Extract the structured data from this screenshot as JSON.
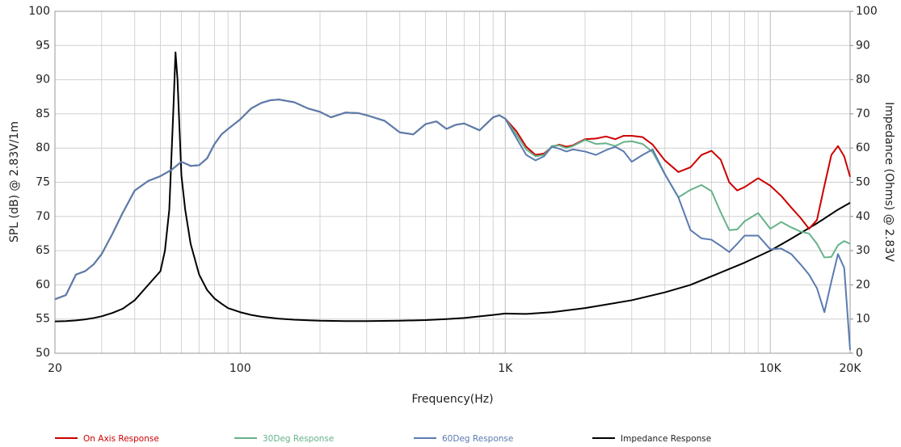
{
  "chart_data": {
    "type": "line",
    "xlabel": "Frequency(Hz)",
    "ylabel": "SPL (dB) @ 2.83V/1m",
    "y2label": "Impedance (Ohms) @ 2.83V",
    "xscale": "log",
    "xlim": [
      20,
      20000
    ],
    "xticks": [
      20,
      100,
      {
        "value": 1000,
        "label": "1K"
      },
      {
        "value": 10000,
        "label": "10K"
      },
      {
        "value": 20000,
        "label": "20K"
      }
    ],
    "x_minor_ticks": [
      30,
      40,
      50,
      60,
      70,
      80,
      90,
      200,
      300,
      400,
      500,
      600,
      700,
      800,
      900,
      2000,
      3000,
      4000,
      5000,
      6000,
      7000,
      8000,
      9000
    ],
    "ylim": [
      50,
      100
    ],
    "yticks": [
      50,
      55,
      60,
      65,
      70,
      75,
      80,
      85,
      90,
      95,
      100
    ],
    "y2lim": [
      0,
      100
    ],
    "y2ticks": [
      0,
      10,
      20,
      30,
      40,
      50,
      60,
      70,
      80,
      90,
      100
    ],
    "grid": true,
    "legend": "bottom",
    "series": [
      {
        "name": "On Axis Response",
        "color": "#cc0000",
        "x": [
          20,
          22,
          24,
          26,
          28,
          30,
          33,
          36,
          40,
          45,
          50,
          55,
          60,
          65,
          70,
          75,
          80,
          85,
          90,
          100,
          110,
          120,
          130,
          140,
          150,
          160,
          180,
          200,
          220,
          250,
          280,
          300,
          350,
          400,
          450,
          500,
          550,
          600,
          650,
          700,
          800,
          900,
          950,
          1000,
          1100,
          1200,
          1300,
          1400,
          1500,
          1600,
          1700,
          1800,
          2000,
          2200,
          2400,
          2600,
          2800,
          3000,
          3300,
          3600,
          4000,
          4500,
          5000,
          5500,
          6000,
          6500,
          7000,
          7500,
          8000,
          9000,
          10000,
          11000,
          12000,
          13000,
          14000,
          15000,
          16000,
          17000,
          18000,
          19000,
          20000
        ],
        "values": [
          57.9,
          58.5,
          61.5,
          62.0,
          63.0,
          64.5,
          67.5,
          70.5,
          73.8,
          75.2,
          75.9,
          76.8,
          78.0,
          77.4,
          77.5,
          78.5,
          80.6,
          82.0,
          82.8,
          84.2,
          85.8,
          86.6,
          87.0,
          87.1,
          86.9,
          86.7,
          85.8,
          85.3,
          84.5,
          85.2,
          85.1,
          84.8,
          84.0,
          82.3,
          82.0,
          83.5,
          83.9,
          82.8,
          83.4,
          83.6,
          82.6,
          84.5,
          84.8,
          84.3,
          82.5,
          80.2,
          79.0,
          79.2,
          80.2,
          80.5,
          80.2,
          80.4,
          81.3,
          81.4,
          81.7,
          81.3,
          81.8,
          81.8,
          81.6,
          80.5,
          78.2,
          76.5,
          77.2,
          79.0,
          79.6,
          78.3,
          75.0,
          73.8,
          74.3,
          75.6,
          74.5,
          73.0,
          71.3,
          69.8,
          68.2,
          69.5,
          74.5,
          79.0,
          80.3,
          78.8,
          75.8
        ]
      },
      {
        "name": "30Deg Response",
        "color": "#66b28a",
        "x": [
          20,
          22,
          24,
          26,
          28,
          30,
          33,
          36,
          40,
          45,
          50,
          55,
          60,
          65,
          70,
          75,
          80,
          85,
          90,
          100,
          110,
          120,
          130,
          140,
          150,
          160,
          180,
          200,
          220,
          250,
          280,
          300,
          350,
          400,
          450,
          500,
          550,
          600,
          650,
          700,
          800,
          900,
          950,
          1000,
          1100,
          1200,
          1300,
          1400,
          1500,
          1600,
          1700,
          1800,
          2000,
          2200,
          2400,
          2600,
          2800,
          3000,
          3300,
          3600,
          4000,
          4500,
          5000,
          5500,
          6000,
          6500,
          7000,
          7500,
          8000,
          9000,
          10000,
          11000,
          12000,
          13000,
          14000,
          15000,
          16000,
          17000,
          18000,
          19000,
          20000
        ],
        "values": [
          57.9,
          58.5,
          61.5,
          62.0,
          63.0,
          64.5,
          67.5,
          70.5,
          73.8,
          75.2,
          75.9,
          76.8,
          78.0,
          77.4,
          77.5,
          78.5,
          80.6,
          82.0,
          82.8,
          84.2,
          85.8,
          86.6,
          87.0,
          87.1,
          86.9,
          86.7,
          85.8,
          85.3,
          84.5,
          85.2,
          85.1,
          84.8,
          84.0,
          82.3,
          82.0,
          83.5,
          83.9,
          82.8,
          83.4,
          83.6,
          82.6,
          84.5,
          84.8,
          84.3,
          82.0,
          79.8,
          78.8,
          79.0,
          80.3,
          80.4,
          80.0,
          80.3,
          81.2,
          80.6,
          80.7,
          80.3,
          80.9,
          81.0,
          80.6,
          79.4,
          76.2,
          72.8,
          73.9,
          74.6,
          73.7,
          70.6,
          68.0,
          68.1,
          69.3,
          70.5,
          68.2,
          69.2,
          68.4,
          67.8,
          67.5,
          66.0,
          64.0,
          64.1,
          65.8,
          66.4,
          66.0
        ]
      },
      {
        "name": "60Deg Response",
        "color": "#5b7bb0",
        "x": [
          20,
          22,
          24,
          26,
          28,
          30,
          33,
          36,
          40,
          45,
          50,
          55,
          60,
          65,
          70,
          75,
          80,
          85,
          90,
          100,
          110,
          120,
          130,
          140,
          150,
          160,
          180,
          200,
          220,
          250,
          280,
          300,
          350,
          400,
          450,
          500,
          550,
          600,
          650,
          700,
          800,
          900,
          950,
          1000,
          1100,
          1200,
          1300,
          1400,
          1500,
          1600,
          1700,
          1800,
          2000,
          2200,
          2400,
          2600,
          2800,
          3000,
          3300,
          3600,
          4000,
          4500,
          5000,
          5500,
          6000,
          6500,
          7000,
          7500,
          8000,
          9000,
          10000,
          11000,
          12000,
          13000,
          14000,
          15000,
          16000,
          17000,
          18000,
          19000,
          20000
        ],
        "values": [
          57.9,
          58.5,
          61.5,
          62.0,
          63.0,
          64.5,
          67.5,
          70.5,
          73.8,
          75.2,
          75.9,
          76.8,
          78.0,
          77.4,
          77.5,
          78.5,
          80.6,
          82.0,
          82.8,
          84.2,
          85.8,
          86.6,
          87.0,
          87.1,
          86.9,
          86.7,
          85.8,
          85.3,
          84.5,
          85.2,
          85.1,
          84.8,
          84.0,
          82.3,
          82.0,
          83.5,
          83.9,
          82.8,
          83.4,
          83.6,
          82.6,
          84.5,
          84.8,
          84.3,
          81.5,
          79.0,
          78.2,
          78.8,
          80.2,
          79.9,
          79.5,
          79.8,
          79.5,
          79.0,
          79.7,
          80.2,
          79.5,
          78.0,
          79.0,
          79.8,
          76.2,
          72.8,
          68.0,
          66.8,
          66.6,
          65.7,
          64.8,
          66.0,
          67.2,
          67.2,
          65.2,
          65.3,
          64.5,
          63.0,
          61.5,
          59.5,
          56.0,
          60.5,
          64.5,
          62.5,
          50.5
        ]
      },
      {
        "name": "Impedance Response",
        "color": "#000000",
        "axis": "y2",
        "x": [
          20,
          22,
          24,
          26,
          28,
          30,
          33,
          36,
          40,
          45,
          50,
          52,
          54,
          56,
          57,
          58,
          60,
          62,
          65,
          70,
          75,
          80,
          85,
          90,
          100,
          110,
          120,
          140,
          160,
          200,
          250,
          300,
          400,
          500,
          600,
          700,
          800,
          900,
          1000,
          1200,
          1500,
          2000,
          3000,
          4000,
          5000,
          6000,
          8000,
          10000,
          12000,
          15000,
          18000,
          20000
        ],
        "values": [
          9.3,
          9.4,
          9.6,
          9.9,
          10.3,
          10.8,
          11.8,
          13.0,
          15.5,
          20,
          24,
          30,
          42,
          72,
          88,
          80,
          52,
          42,
          32,
          23,
          18.5,
          16,
          14.5,
          13.2,
          12,
          11.2,
          10.7,
          10.1,
          9.8,
          9.5,
          9.4,
          9.4,
          9.5,
          9.7,
          10,
          10.3,
          10.8,
          11.2,
          11.6,
          11.5,
          12,
          13.2,
          15.5,
          17.8,
          20,
          22.5,
          26.5,
          30,
          33.5,
          38,
          42,
          44
        ]
      }
    ]
  }
}
